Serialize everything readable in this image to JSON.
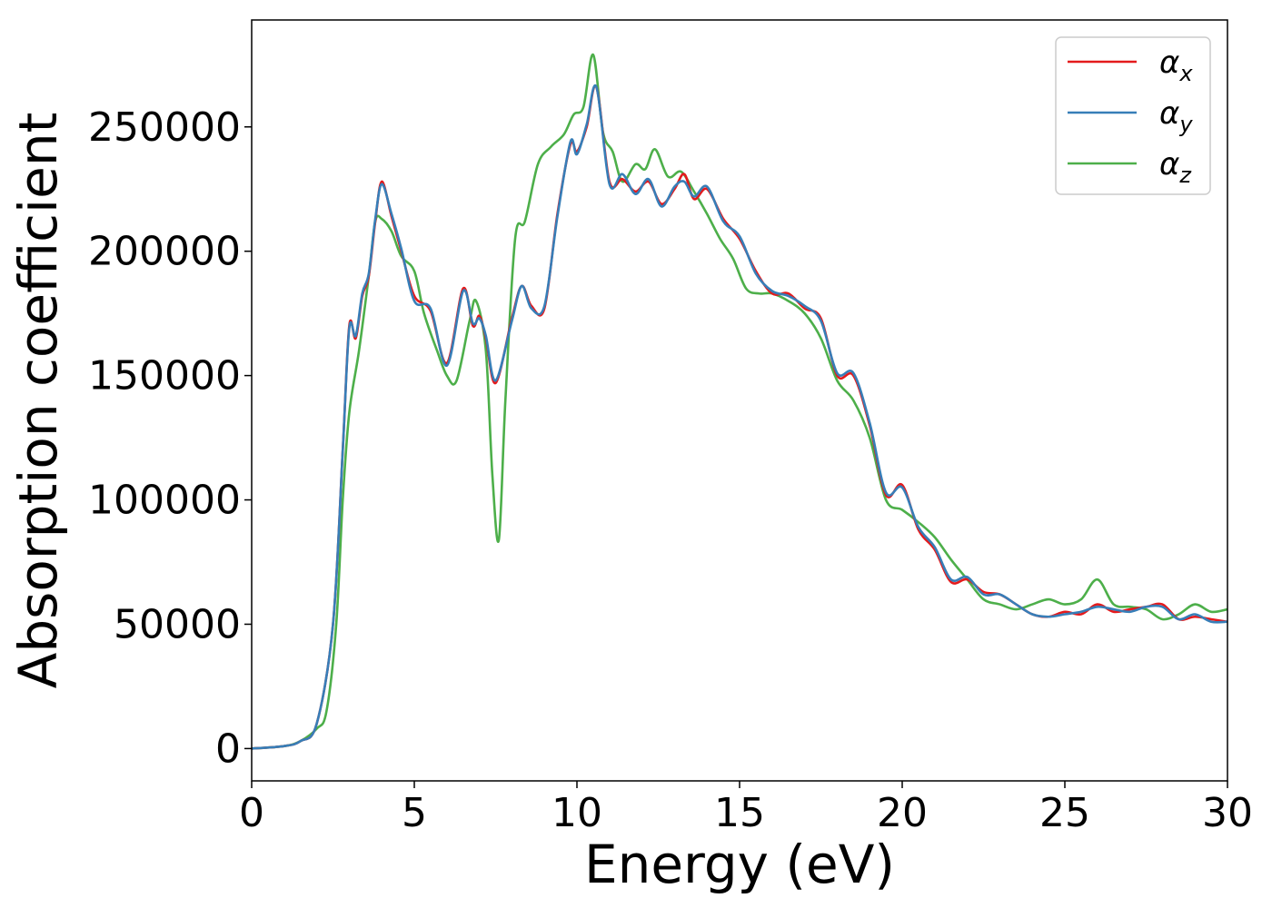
{
  "chart_data": {
    "type": "line",
    "xlabel": "Energy (eV)",
    "ylabel": "Absorption coefficient",
    "xlim": [
      0,
      30
    ],
    "ylim": [
      -13000,
      293000
    ],
    "xticks": [
      0,
      5,
      10,
      15,
      20,
      25,
      30
    ],
    "yticks": [
      0,
      50000,
      100000,
      150000,
      200000,
      250000
    ],
    "grid": false,
    "legend_position": "top-right",
    "series": [
      {
        "name": "αx",
        "label_base": "α",
        "label_sub": "x",
        "color": "#e41a1c",
        "x": [
          0,
          1,
          1.5,
          2,
          2.5,
          2.8,
          3.0,
          3.2,
          3.4,
          3.6,
          3.8,
          4.0,
          4.3,
          4.6,
          5.0,
          5.5,
          6.0,
          6.5,
          6.8,
          7.0,
          7.2,
          7.5,
          8.0,
          8.3,
          8.6,
          9.0,
          9.4,
          9.8,
          10.0,
          10.3,
          10.6,
          11.0,
          11.4,
          11.8,
          12.2,
          12.6,
          13.0,
          13.3,
          13.6,
          14.0,
          14.5,
          15.0,
          15.5,
          16.0,
          16.5,
          17.0,
          17.5,
          18.0,
          18.5,
          19.0,
          19.5,
          20.0,
          20.5,
          21.0,
          21.5,
          22.0,
          22.5,
          23.0,
          23.5,
          24.0,
          24.5,
          25.0,
          25.5,
          26.0,
          26.5,
          27.0,
          27.5,
          28.0,
          28.5,
          29.0,
          29.5,
          30.0
        ],
        "y": [
          0,
          1000,
          3000,
          10000,
          50000,
          120000,
          170000,
          165000,
          182000,
          190000,
          212000,
          228000,
          214000,
          200000,
          182000,
          176000,
          155000,
          185000,
          170000,
          174000,
          165000,
          147000,
          173000,
          186000,
          178000,
          177000,
          215000,
          243000,
          240000,
          250000,
          266000,
          228000,
          229000,
          224000,
          228000,
          219000,
          225000,
          231000,
          221000,
          225000,
          213000,
          205000,
          192000,
          183000,
          183000,
          177000,
          173000,
          150000,
          150000,
          130000,
          102000,
          106000,
          88000,
          80000,
          67000,
          68000,
          63000,
          62000,
          58000,
          54000,
          53000,
          55000,
          54000,
          58000,
          55000,
          56000,
          57000,
          58000,
          52000,
          53000,
          52000,
          51000
        ]
      },
      {
        "name": "αy",
        "label_base": "α",
        "label_sub": "y",
        "color": "#377eb8",
        "x": [
          0,
          1,
          1.5,
          2,
          2.5,
          2.8,
          3.0,
          3.2,
          3.4,
          3.6,
          3.8,
          4.0,
          4.3,
          4.6,
          5.0,
          5.5,
          6.0,
          6.5,
          6.8,
          7.0,
          7.2,
          7.5,
          8.0,
          8.3,
          8.6,
          9.0,
          9.4,
          9.8,
          10.0,
          10.3,
          10.6,
          11.0,
          11.4,
          11.8,
          12.2,
          12.6,
          13.0,
          13.3,
          13.6,
          14.0,
          14.5,
          15.0,
          15.5,
          16.0,
          16.5,
          17.0,
          17.5,
          18.0,
          18.5,
          19.0,
          19.5,
          20.0,
          20.5,
          21.0,
          21.5,
          22.0,
          22.5,
          23.0,
          23.5,
          24.0,
          24.5,
          25.0,
          25.5,
          26.0,
          26.5,
          27.0,
          27.5,
          28.0,
          28.5,
          29.0,
          29.5,
          30.0
        ],
        "y": [
          0,
          1000,
          3000,
          10000,
          50000,
          120000,
          169000,
          166000,
          183000,
          191000,
          213000,
          227000,
          215000,
          201000,
          180000,
          177000,
          154000,
          184000,
          171000,
          173000,
          166000,
          148000,
          172000,
          186000,
          177000,
          178000,
          214000,
          244000,
          239000,
          251000,
          266000,
          227000,
          231000,
          223000,
          229000,
          218000,
          226000,
          228000,
          222000,
          226000,
          212000,
          206000,
          191000,
          184000,
          182000,
          178000,
          172000,
          151000,
          151000,
          131000,
          103000,
          105000,
          89000,
          81000,
          68000,
          69000,
          62000,
          62000,
          58000,
          54000,
          53000,
          54000,
          55000,
          57000,
          56000,
          55000,
          57000,
          57000,
          52000,
          54000,
          51000,
          51000
        ]
      },
      {
        "name": "αz",
        "label_base": "α",
        "label_sub": "z",
        "color": "#4daf4a",
        "x": [
          0,
          1,
          1.5,
          2,
          2.3,
          2.6,
          2.8,
          3.0,
          3.3,
          3.6,
          3.8,
          4.0,
          4.3,
          4.6,
          5.0,
          5.3,
          5.7,
          6.0,
          6.3,
          6.7,
          6.9,
          7.2,
          7.4,
          7.6,
          7.8,
          8.1,
          8.4,
          8.8,
          9.2,
          9.6,
          9.9,
          10.2,
          10.5,
          10.8,
          11.1,
          11.4,
          11.8,
          12.1,
          12.4,
          12.8,
          13.2,
          13.6,
          14.0,
          14.4,
          14.8,
          15.2,
          15.6,
          16.0,
          16.5,
          17.0,
          17.5,
          18.0,
          18.5,
          19.0,
          19.5,
          20.0,
          20.5,
          21.0,
          21.5,
          22.0,
          22.5,
          23.0,
          23.5,
          24.0,
          24.5,
          25.0,
          25.5,
          26.0,
          26.5,
          27.0,
          27.5,
          28.0,
          28.5,
          29.0,
          29.5,
          30.0
        ],
        "y": [
          0,
          1000,
          3000,
          8000,
          15000,
          50000,
          100000,
          135000,
          160000,
          190000,
          212000,
          213000,
          208000,
          198000,
          192000,
          175000,
          160000,
          150000,
          148000,
          172000,
          180000,
          160000,
          110000,
          84000,
          140000,
          205000,
          212000,
          235000,
          242000,
          247000,
          255000,
          258000,
          279000,
          248000,
          240000,
          228000,
          235000,
          233000,
          241000,
          230000,
          232000,
          224000,
          215000,
          205000,
          197000,
          185000,
          183000,
          183000,
          180000,
          175000,
          165000,
          148000,
          140000,
          125000,
          100000,
          96000,
          91000,
          85000,
          76000,
          68000,
          60000,
          58000,
          56000,
          58000,
          60000,
          58000,
          60000,
          68000,
          58000,
          57000,
          56000,
          52000,
          54000,
          58000,
          55000,
          56000
        ]
      }
    ]
  }
}
